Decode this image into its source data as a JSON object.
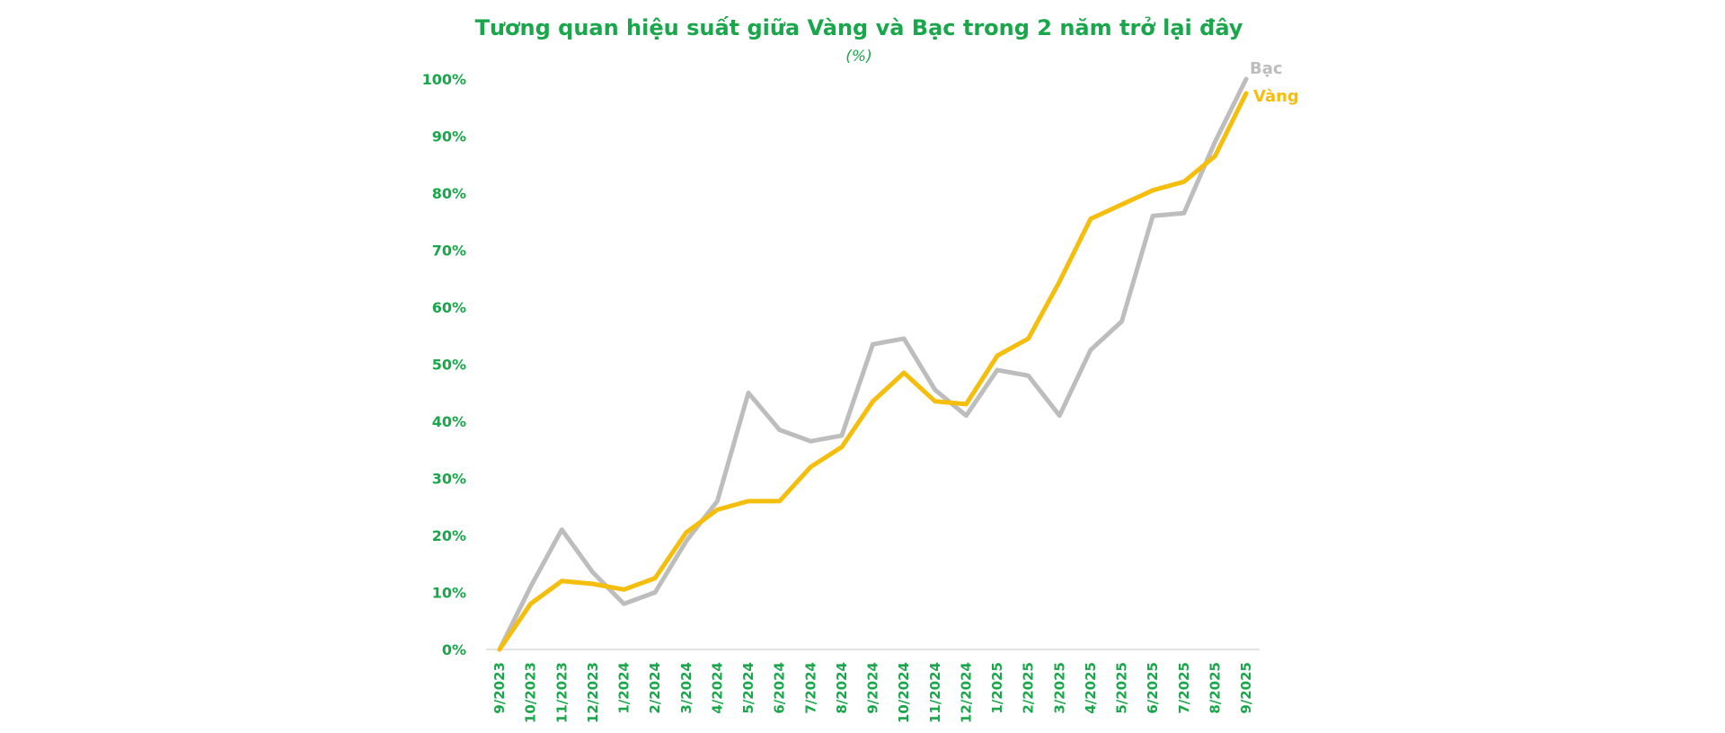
{
  "chart_data": {
    "type": "line",
    "title": "Tương quan hiệu suất giữa Vàng và Bạc trong 2 năm trở lại đây",
    "subtitle": "(%)",
    "x": [
      "9/2023",
      "10/2023",
      "11/2023",
      "12/2023",
      "1/2024",
      "2/2024",
      "3/2024",
      "4/2024",
      "5/2024",
      "6/2024",
      "7/2024",
      "8/2024",
      "9/2024",
      "10/2024",
      "11/2024",
      "12/2024",
      "1/2025",
      "2/2025",
      "3/2025",
      "4/2025",
      "5/2025",
      "6/2025",
      "7/2025",
      "8/2025",
      "9/2025"
    ],
    "yticks": [
      "0%",
      "10%",
      "20%",
      "30%",
      "40%",
      "50%",
      "60%",
      "70%",
      "80%",
      "90%",
      "100%"
    ],
    "ylim": [
      0,
      100
    ],
    "grid": false,
    "series": [
      {
        "name": "Bạc",
        "color": "#bdbdbd",
        "values": [
          0,
          11,
          21,
          13.5,
          8,
          10,
          19,
          26,
          45,
          38.5,
          36.5,
          37.5,
          53.5,
          54.5,
          45.5,
          41,
          49,
          48,
          41,
          52.5,
          57.5,
          76,
          76.5,
          89,
          100
        ]
      },
      {
        "name": "Vàng",
        "color": "#f5bd0c",
        "values": [
          0,
          8,
          12,
          11.5,
          10.5,
          12.5,
          20.5,
          24.5,
          26,
          26,
          32,
          35.5,
          43.5,
          48.5,
          43.5,
          43,
          51.5,
          54.5,
          64.5,
          75.5,
          78,
          80.5,
          82,
          86.5,
          97.5
        ]
      }
    ]
  }
}
